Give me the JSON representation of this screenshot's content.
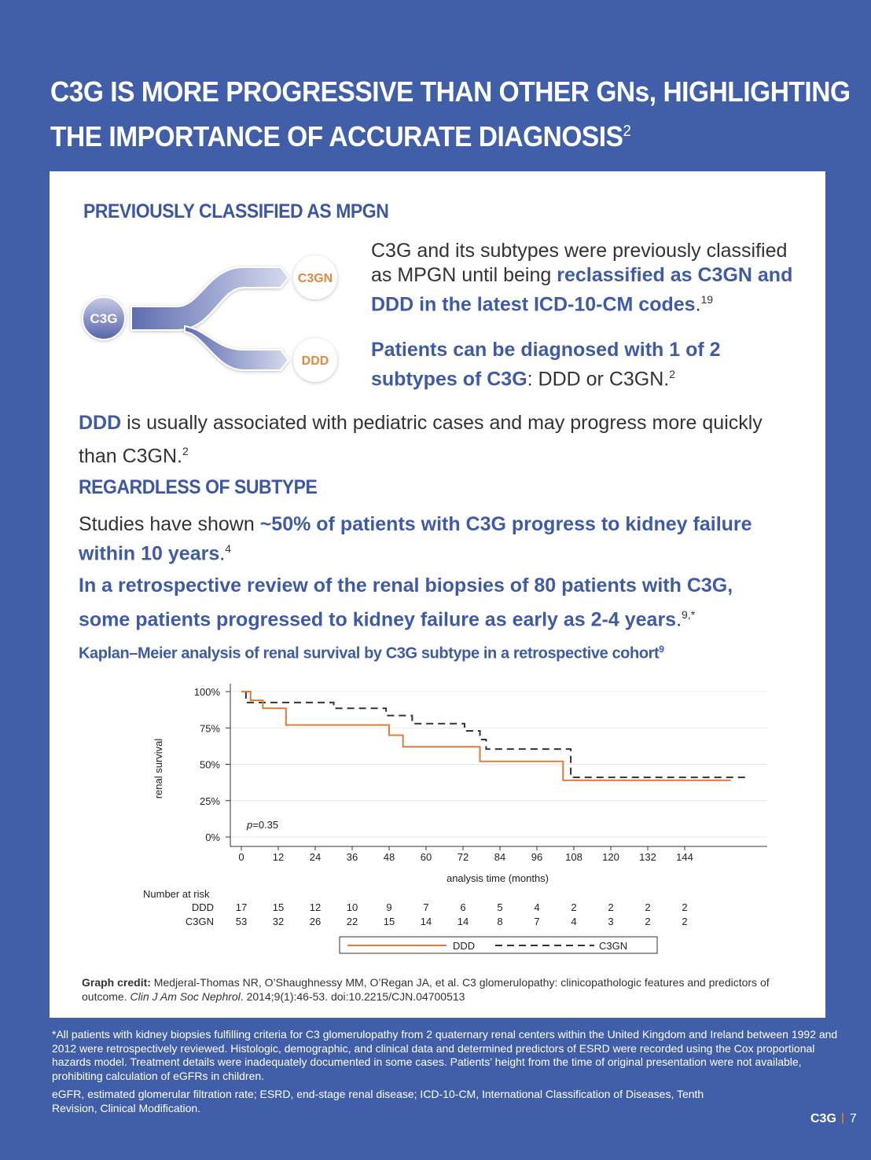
{
  "title": {
    "line1": "C3G IS MORE PROGRESSIVE THAN OTHER GNs, HIGHLIGHTING",
    "line2": "THE IMPORTANCE OF ACCURATE DIAGNOSIS",
    "ref": "2"
  },
  "section1": {
    "heading": "PREVIOUSLY CLASSIFIED AS MPGN",
    "diagram": {
      "root": "C3G",
      "branch_top": "C3GN",
      "branch_bottom": "DDD"
    },
    "para1": {
      "plain": "C3G and its subtypes were previously classified as MPGN until being ",
      "bold": "reclassified as C3GN and DDD in the latest ICD-10-CM codes",
      "end": ".",
      "ref": "19"
    },
    "para2": {
      "bold": "Patients can be diagnosed with 1 of 2 subtypes of C3G",
      "plain": ": DDD or C3GN.",
      "ref": "2"
    },
    "para3": {
      "bold": "DDD",
      "plain": " is usually associated with pediatric cases and may progress more quickly than C3GN.",
      "ref": "2"
    }
  },
  "section2": {
    "heading": "REGARDLESS OF SUBTYPE",
    "para1": {
      "plain": "Studies have shown ",
      "bold": "~50% of patients with C3G progress to kidney failure within 10 years",
      "end": ".",
      "ref": "4"
    },
    "para2": {
      "bold": "In a retrospective review of the renal biopsies of 80 patients with C3G, some patients progressed to kidney failure as early as 2-4 years",
      "end": ".",
      "ref": "9,*"
    },
    "chart_title": "Kaplan–Meier analysis of renal survival by C3G subtype in a retrospective cohort",
    "chart_title_ref": "9"
  },
  "chart_data": {
    "type": "line",
    "step": true,
    "xlabel": "analysis time (months)",
    "ylabel": "renal survival",
    "xlim": [
      0,
      168
    ],
    "ylim": [
      0,
      100
    ],
    "xticks": [
      "0",
      "12",
      "24",
      "36",
      "48",
      "60",
      "72",
      "84",
      "96",
      "108",
      "120",
      "132",
      "144"
    ],
    "yticks": [
      "0%",
      "25%",
      "50%",
      "75%",
      "100%"
    ],
    "grid": true,
    "annotation": {
      "italic": "p",
      "text": "=0.35"
    },
    "series": [
      {
        "name": "DDD",
        "color": "#e07b39",
        "dash": false,
        "points": [
          [
            0,
            100
          ],
          [
            3,
            94
          ],
          [
            7,
            88.5
          ],
          [
            14.5,
            77
          ],
          [
            48,
            70
          ],
          [
            52.5,
            62
          ],
          [
            77.5,
            52
          ],
          [
            104.5,
            39
          ],
          [
            159,
            39
          ]
        ]
      },
      {
        "name": "C3GN",
        "color": "#333333",
        "dash": true,
        "points": [
          [
            1.5,
            100
          ],
          [
            1.5,
            92.5
          ],
          [
            30,
            88.5
          ],
          [
            47,
            83.5
          ],
          [
            55.5,
            78
          ],
          [
            72.5,
            73
          ],
          [
            77.5,
            67
          ],
          [
            79.5,
            60.5
          ],
          [
            107,
            41
          ],
          [
            165,
            41
          ]
        ]
      }
    ],
    "legend_position": "bottom",
    "risk_table": {
      "label": "Number at risk",
      "times": [
        0,
        12,
        24,
        36,
        48,
        60,
        72,
        84,
        96,
        108,
        120,
        132,
        144
      ],
      "rows": [
        {
          "name": "DDD",
          "values": [
            "17",
            "15",
            "12",
            "10",
            "9",
            "7",
            "6",
            "5",
            "4",
            "2",
            "2",
            "2",
            "2"
          ]
        },
        {
          "name": "C3GN",
          "values": [
            "53",
            "32",
            "26",
            "22",
            "15",
            "14",
            "14",
            "8",
            "7",
            "4",
            "3",
            "2",
            "2"
          ]
        }
      ]
    }
  },
  "credit": {
    "label": "Graph credit:",
    "text": " Medjeral-Thomas NR, O’Shaughnessy MM, O’Regan JA, et al. C3 glomerulopathy: clinicopathologic features and predictors of outcome. ",
    "journal": "Clin J Am Soc Nephrol",
    "rest": ". 2014;9(1):46-53. doi:10.2215/CJN.04700513"
  },
  "footnotes": {
    "star": "*All patients with kidney biopsies fulfilling criteria for C3 glomerulopathy from 2 quaternary renal centers within the United Kingdom and Ireland between 1992 and 2012 were retrospectively reviewed. Histologic, demographic, and clinical data and determined predictors of ESRD were recorded using the Cox proportional hazards model. Treatment details were inadequately documented in some cases. Patients’ height from the time of original presentation were not available, prohibiting calculation of eGFRs in children.",
    "abbrev": "eGFR, estimated glomerular filtration rate; ESRD, end-stage renal disease; ICD-10-CM, International Classification of Diseases, Tenth Revision, Clinical Modification."
  },
  "page": {
    "logo": "C3G",
    "number": "7"
  },
  "colors": {
    "background": "#415fa8",
    "accent_blue": "#3f5ba6",
    "orange": "#e07b39"
  }
}
